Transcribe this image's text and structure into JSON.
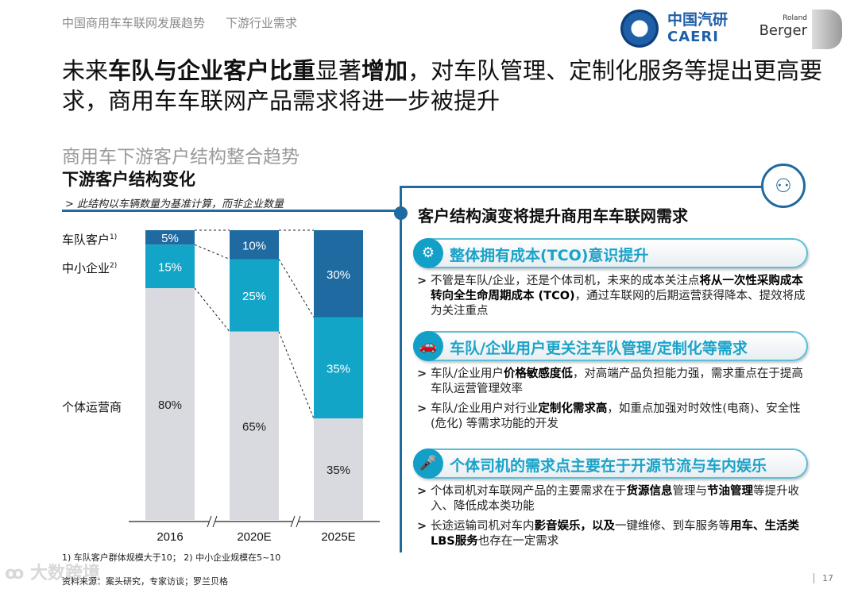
{
  "header": {
    "breadcrumb": [
      "中国商用车车联网发展趋势",
      "下游行业需求"
    ],
    "logo_caeri_cn": "中国汽研",
    "logo_caeri_en": "CAERI",
    "logo_rb_top": "Roland",
    "logo_rb": "Berger"
  },
  "title": [
    {
      "t": "未来",
      "b": false
    },
    {
      "t": "车队与企业客户比重",
      "b": true
    },
    {
      "t": "显著",
      "b": false
    },
    {
      "t": "增加",
      "b": true
    },
    {
      "t": "，对车队管理、定制化服务等提出更高要求，商用车车联网产品需求将进一步被提升",
      "b": false
    }
  ],
  "left": {
    "section_title": "商用车下游客户结构整合趋势",
    "subtitle": "下游客户结构变化",
    "note": "> 此结构以车辆数量为基准计算，而非企业数量",
    "footnote": "1) 车队客户群体规模大于10； 2) 中小企业规模在5~10",
    "source": "资料来源：案头研究，专家访谈；罗兰贝格"
  },
  "chart_data": {
    "type": "bar",
    "stacked": true,
    "categories": [
      "2016",
      "2020E",
      "2025E"
    ],
    "series": [
      {
        "name": "车队客户",
        "sup": "1)",
        "values": [
          5,
          10,
          30
        ],
        "color": "#1f6aa0"
      },
      {
        "name": "中小企业",
        "sup": "2)",
        "values": [
          15,
          25,
          35
        ],
        "color": "#12a5c8"
      },
      {
        "name": "个体运营商",
        "sup": "",
        "values": [
          80,
          65,
          35
        ],
        "color": "#d9dadf"
      }
    ],
    "unit": "%",
    "ylim": [
      0,
      100
    ],
    "axis_breaks": true
  },
  "right": {
    "heading": "客户结构演变将提升商用车车联网需求",
    "sections": [
      {
        "icon": "head-gears-icon",
        "title": "整体拥有成本(TCO)意识提升",
        "bullets": [
          [
            {
              "t": "不管是车队/企业，还是个体司机，未来的成本关注点",
              "b": false
            },
            {
              "t": "将从一次性采购成本转向全生命周期成本 (TCO)",
              "b": true
            },
            {
              "t": "，通过车联网的后期运营获得降本、提效将成为关注重点",
              "b": false
            }
          ]
        ]
      },
      {
        "icon": "vehicles-icon",
        "title": "车队/企业用户更关注车队管理/定制化等需求",
        "bullets": [
          [
            {
              "t": "车队/企业用户",
              "b": false
            },
            {
              "t": "价格敏感度低",
              "b": true
            },
            {
              "t": "，对高端产品负担能力强，需求重点在于提高车队运营管理效率",
              "b": false
            }
          ],
          [
            {
              "t": "车队/企业用户对行业",
              "b": false
            },
            {
              "t": "定制化需求高",
              "b": true
            },
            {
              "t": "，如重点加强对时效性(电商)、安全性 (危化) 等需求功能的开发",
              "b": false
            }
          ]
        ]
      },
      {
        "icon": "microphone-icon",
        "title": "个体司机的需求点主要在于开源节流与车内娱乐",
        "bullets": [
          [
            {
              "t": "个体司机对车联网产品的主要需求在于",
              "b": false
            },
            {
              "t": "货源信息",
              "b": true
            },
            {
              "t": "管理与",
              "b": false
            },
            {
              "t": "节油管理",
              "b": true
            },
            {
              "t": "等提升收入、降低成本类功能",
              "b": false
            }
          ],
          [
            {
              "t": "长途运输司机对车内",
              "b": false
            },
            {
              "t": "影音娱乐，以及",
              "b": true
            },
            {
              "t": "一键维修、到车服务等",
              "b": false
            },
            {
              "t": "用车、生活类LBS服务",
              "b": true
            },
            {
              "t": "也存在一定需求",
              "b": false
            }
          ]
        ]
      }
    ]
  },
  "watermark": "大数跨境",
  "page_number": "17"
}
